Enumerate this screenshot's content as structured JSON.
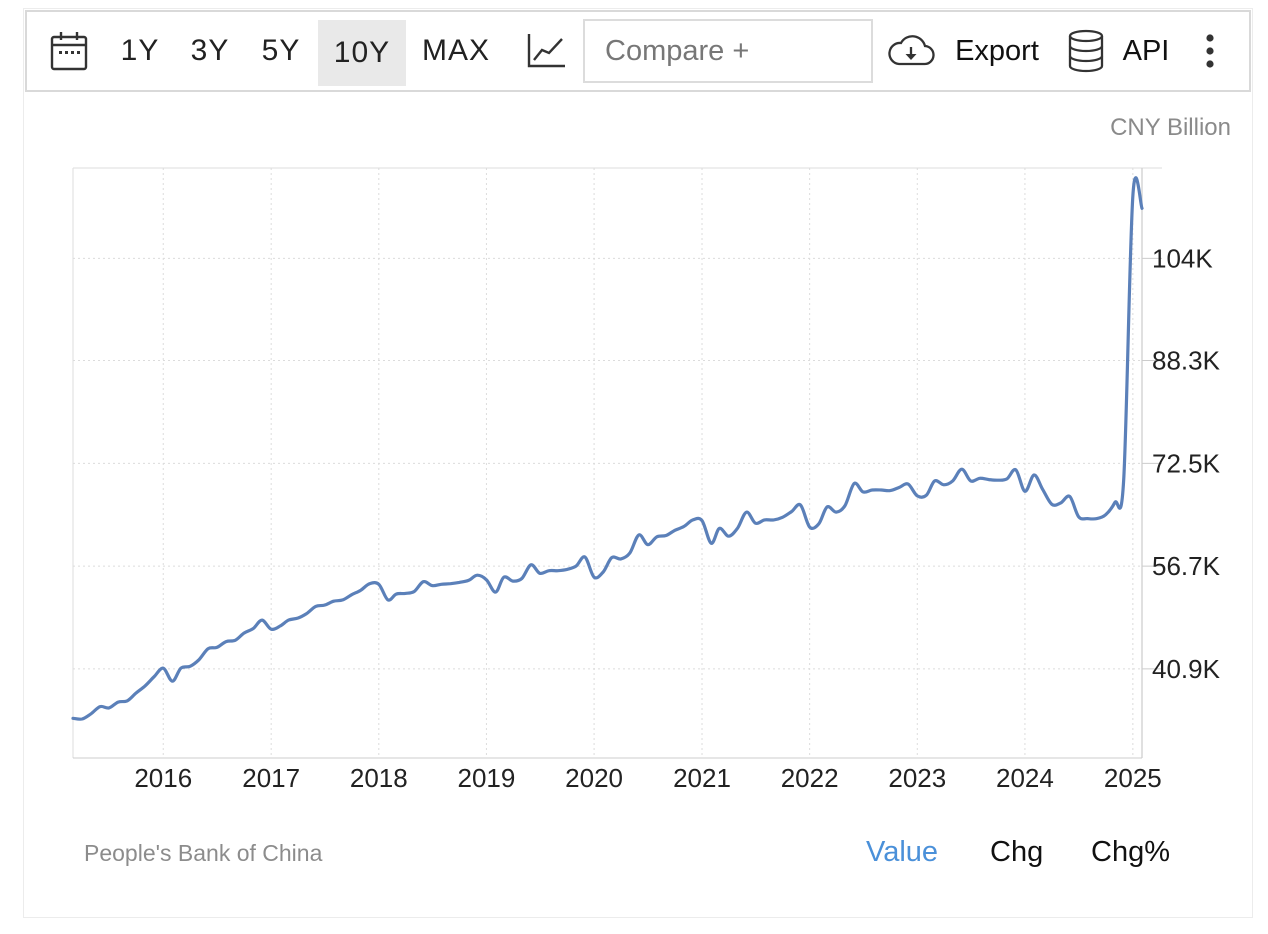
{
  "toolbar": {
    "ranges": [
      "1Y",
      "3Y",
      "5Y",
      "10Y",
      "MAX"
    ],
    "active_range": "10Y",
    "compare_placeholder": "Compare +",
    "export_label": "Export",
    "api_label": "API",
    "icons": [
      "calendar-icon",
      "line-chart-icon",
      "cloud-download-icon",
      "database-icon",
      "kebab-menu-icon"
    ]
  },
  "footer": {
    "source": "People's Bank of China",
    "modes": [
      "Value",
      "Chg",
      "Chg%"
    ],
    "active_mode": "Value",
    "active_color": "#4a90d9"
  },
  "chart_data": {
    "type": "line",
    "unit": "CNY Billion",
    "title": "",
    "xlabel": "",
    "ylabel": "",
    "x_ticks": [
      "2016",
      "2017",
      "2018",
      "2019",
      "2020",
      "2021",
      "2022",
      "2023",
      "2024",
      "2025"
    ],
    "y_ticks": [
      "40.9K",
      "56.7K",
      "72.5K",
      "88.3K",
      "104K"
    ],
    "y_tick_values": [
      40900,
      56700,
      72500,
      88300,
      104000
    ],
    "x_range": [
      "2015-03-01",
      "2025-02-01"
    ],
    "y_range": [
      27200,
      117900
    ],
    "grid": true,
    "line_color": "#5b80b9",
    "series": [
      {
        "points": [
          [
            "2015-03-01",
            33300
          ],
          [
            "2015-04-01",
            33200
          ],
          [
            "2015-05-01",
            34000
          ],
          [
            "2015-06-01",
            35100
          ],
          [
            "2015-07-01",
            34900
          ],
          [
            "2015-08-01",
            35800
          ],
          [
            "2015-09-01",
            36000
          ],
          [
            "2015-10-01",
            37200
          ],
          [
            "2015-11-01",
            38300
          ],
          [
            "2015-12-01",
            39700
          ],
          [
            "2016-01-01",
            41000
          ],
          [
            "2016-02-01",
            39000
          ],
          [
            "2016-03-01",
            41000
          ],
          [
            "2016-04-01",
            41300
          ],
          [
            "2016-05-01",
            42300
          ],
          [
            "2016-06-01",
            44000
          ],
          [
            "2016-07-01",
            44200
          ],
          [
            "2016-08-01",
            45100
          ],
          [
            "2016-09-01",
            45300
          ],
          [
            "2016-10-01",
            46400
          ],
          [
            "2016-11-01",
            47100
          ],
          [
            "2016-12-01",
            48400
          ],
          [
            "2017-01-01",
            47000
          ],
          [
            "2017-02-01",
            47500
          ],
          [
            "2017-03-01",
            48400
          ],
          [
            "2017-04-01",
            48700
          ],
          [
            "2017-05-01",
            49400
          ],
          [
            "2017-06-01",
            50500
          ],
          [
            "2017-07-01",
            50700
          ],
          [
            "2017-08-01",
            51300
          ],
          [
            "2017-09-01",
            51500
          ],
          [
            "2017-10-01",
            52300
          ],
          [
            "2017-11-01",
            53000
          ],
          [
            "2017-12-01",
            54000
          ],
          [
            "2018-01-01",
            53900
          ],
          [
            "2018-02-01",
            51500
          ],
          [
            "2018-03-01",
            52400
          ],
          [
            "2018-04-01",
            52500
          ],
          [
            "2018-05-01",
            52800
          ],
          [
            "2018-06-01",
            54300
          ],
          [
            "2018-07-01",
            53700
          ],
          [
            "2018-08-01",
            53900
          ],
          [
            "2018-09-01",
            54000
          ],
          [
            "2018-10-01",
            54200
          ],
          [
            "2018-11-01",
            54500
          ],
          [
            "2018-12-01",
            55300
          ],
          [
            "2019-01-01",
            54600
          ],
          [
            "2019-02-01",
            52700
          ],
          [
            "2019-03-01",
            55000
          ],
          [
            "2019-04-01",
            54400
          ],
          [
            "2019-05-01",
            54800
          ],
          [
            "2019-06-01",
            56900
          ],
          [
            "2019-07-01",
            55600
          ],
          [
            "2019-08-01",
            56000
          ],
          [
            "2019-09-01",
            56000
          ],
          [
            "2019-10-01",
            56200
          ],
          [
            "2019-11-01",
            56700
          ],
          [
            "2019-12-01",
            58100
          ],
          [
            "2020-01-01",
            55000
          ],
          [
            "2020-02-01",
            55800
          ],
          [
            "2020-03-01",
            58000
          ],
          [
            "2020-04-01",
            57800
          ],
          [
            "2020-05-01",
            58700
          ],
          [
            "2020-06-01",
            61500
          ],
          [
            "2020-07-01",
            60000
          ],
          [
            "2020-08-01",
            61200
          ],
          [
            "2020-09-01",
            61400
          ],
          [
            "2020-10-01",
            62200
          ],
          [
            "2020-11-01",
            62800
          ],
          [
            "2020-12-01",
            63800
          ],
          [
            "2021-01-01",
            63700
          ],
          [
            "2021-02-01",
            60200
          ],
          [
            "2021-03-01",
            62500
          ],
          [
            "2021-04-01",
            61300
          ],
          [
            "2021-05-01",
            62500
          ],
          [
            "2021-06-01",
            65000
          ],
          [
            "2021-07-01",
            63300
          ],
          [
            "2021-08-01",
            63800
          ],
          [
            "2021-09-01",
            63800
          ],
          [
            "2021-10-01",
            64200
          ],
          [
            "2021-11-01",
            65100
          ],
          [
            "2021-12-01",
            66100
          ],
          [
            "2022-01-01",
            62700
          ],
          [
            "2022-02-01",
            63200
          ],
          [
            "2022-03-01",
            65800
          ],
          [
            "2022-04-01",
            65000
          ],
          [
            "2022-05-01",
            66000
          ],
          [
            "2022-06-01",
            69400
          ],
          [
            "2022-07-01",
            68100
          ],
          [
            "2022-08-01",
            68400
          ],
          [
            "2022-09-01",
            68400
          ],
          [
            "2022-10-01",
            68300
          ],
          [
            "2022-11-01",
            68800
          ],
          [
            "2022-12-01",
            69300
          ],
          [
            "2023-01-01",
            67500
          ],
          [
            "2023-02-01",
            67600
          ],
          [
            "2023-03-01",
            69800
          ],
          [
            "2023-04-01",
            69200
          ],
          [
            "2023-05-01",
            69800
          ],
          [
            "2023-06-01",
            71600
          ],
          [
            "2023-07-01",
            69800
          ],
          [
            "2023-08-01",
            70200
          ],
          [
            "2023-09-01",
            70000
          ],
          [
            "2023-10-01",
            69900
          ],
          [
            "2023-11-01",
            70100
          ],
          [
            "2023-12-01",
            71500
          ],
          [
            "2024-01-01",
            68200
          ],
          [
            "2024-02-01",
            70700
          ],
          [
            "2024-03-01",
            68500
          ],
          [
            "2024-04-01",
            66200
          ],
          [
            "2024-05-01",
            66400
          ],
          [
            "2024-06-01",
            67400
          ],
          [
            "2024-07-01",
            64300
          ],
          [
            "2024-08-01",
            64000
          ],
          [
            "2024-09-01",
            64000
          ],
          [
            "2024-10-01",
            64600
          ],
          [
            "2024-11-01",
            66500
          ],
          [
            "2024-12-01",
            70000
          ],
          [
            "2025-01-01",
            113700
          ],
          [
            "2025-02-01",
            111700
          ]
        ]
      }
    ]
  }
}
